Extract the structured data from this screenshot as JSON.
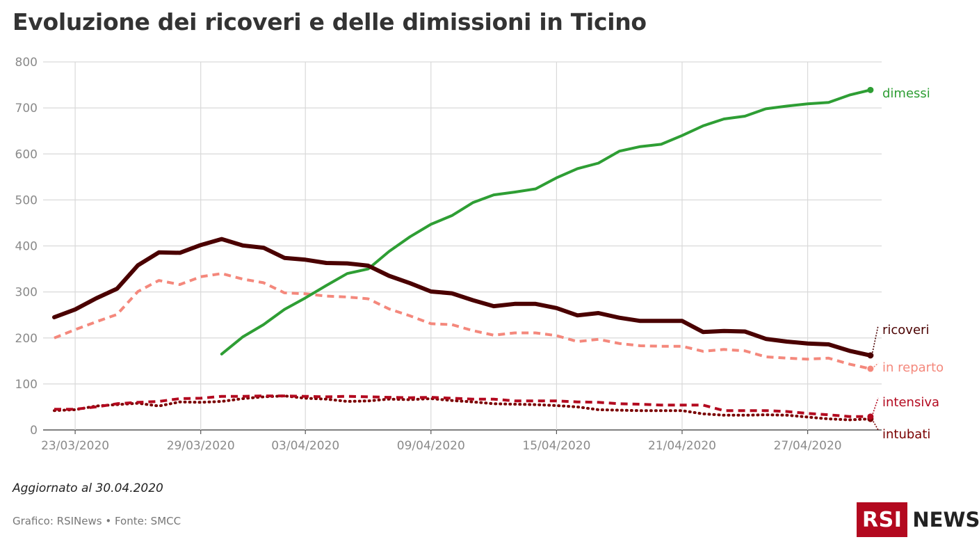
{
  "title": "Evoluzione dei ricoveri e delle dimissioni in Ticino",
  "updated": "Aggiornato al 30.04.2020",
  "source": "Grafico: RSINews • Fonte: SMCC",
  "logo": {
    "left": "RSI",
    "right": "NEWS",
    "color": "#b3091f"
  },
  "chart_data": {
    "type": "line",
    "x_start": "22/03/2020",
    "ylim": [
      0,
      800
    ],
    "y_ticks": [
      0,
      100,
      200,
      300,
      400,
      500,
      600,
      700,
      800
    ],
    "x_ticks": [
      "23/03/2020",
      "29/03/2020",
      "03/04/2020",
      "09/04/2020",
      "15/04/2020",
      "21/04/2020",
      "27/04/2020"
    ],
    "x_tick_index": [
      1,
      7,
      12,
      18,
      24,
      30,
      36
    ],
    "grid": true,
    "series": [
      {
        "name": "ricoveri",
        "color": "#4a0000",
        "style": "solid",
        "width": 6,
        "start": 0,
        "values": [
          245,
          262,
          286,
          307,
          358,
          386,
          385,
          402,
          415,
          401,
          396,
          374,
          370,
          363,
          362,
          357,
          335,
          319,
          301,
          297,
          282,
          269,
          274,
          274,
          265,
          249,
          254,
          244,
          237,
          237,
          237,
          213,
          215,
          214,
          198,
          192,
          188,
          186,
          172,
          162
        ]
      },
      {
        "name": "in reparto",
        "color": "#f4887c",
        "style": "dashed",
        "width": 4,
        "start": 0,
        "values": [
          200,
          218,
          235,
          251,
          301,
          325,
          316,
          333,
          340,
          328,
          320,
          298,
          296,
          291,
          289,
          285,
          263,
          248,
          231,
          229,
          216,
          206,
          211,
          211,
          205,
          192,
          197,
          188,
          183,
          182,
          182,
          171,
          175,
          172,
          159,
          156,
          154,
          156,
          143,
          133
        ]
      },
      {
        "name": "dimessi",
        "color": "#2e9e34",
        "style": "solid",
        "width": 4,
        "start": 8,
        "values": [
          165,
          202,
          229,
          262,
          287,
          314,
          340,
          350,
          388,
          420,
          447,
          466,
          494,
          511,
          517,
          524,
          548,
          568,
          580,
          606,
          616,
          621,
          640,
          661,
          676,
          682,
          698,
          704,
          709,
          712,
          728,
          739
        ]
      },
      {
        "name": "intensiva",
        "color": "#b3091f",
        "style": "dashed",
        "width": 4,
        "start": 0,
        "values": [
          45,
          45,
          50,
          57,
          60,
          62,
          68,
          69,
          73,
          73,
          74,
          74,
          73,
          72,
          73,
          72,
          71,
          70,
          71,
          69,
          67,
          67,
          63,
          63,
          63,
          61,
          60,
          57,
          56,
          54,
          54,
          54,
          42,
          42,
          42,
          40,
          36,
          33,
          29,
          29
        ]
      },
      {
        "name": "intubati",
        "color": "#7a0000",
        "style": "dotted",
        "width": 4,
        "start": 0,
        "values": [
          42,
          44,
          52,
          55,
          58,
          52,
          61,
          60,
          62,
          68,
          72,
          74,
          69,
          67,
          62,
          63,
          67,
          66,
          68,
          64,
          61,
          57,
          56,
          55,
          53,
          50,
          44,
          43,
          42,
          42,
          42,
          35,
          32,
          32,
          33,
          32,
          28,
          24,
          22,
          24
        ]
      }
    ]
  }
}
